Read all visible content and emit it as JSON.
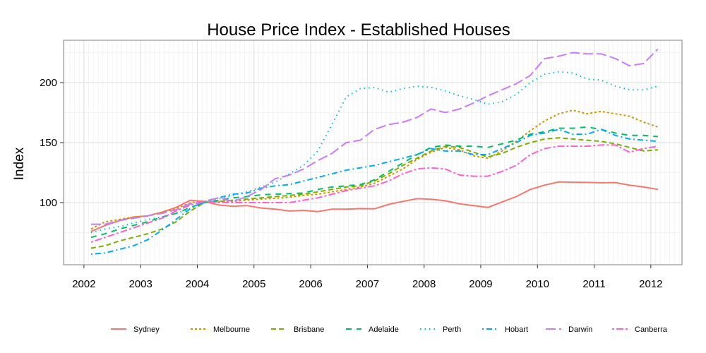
{
  "chart_data": {
    "type": "line",
    "title": "House Price Index - Established Houses",
    "xlabel": "",
    "ylabel": "Index",
    "xlim": [
      2001.64,
      2012.55
    ],
    "ylim": [
      48.2,
      235.3
    ],
    "x_ticks": [
      2002,
      2003,
      2004,
      2005,
      2006,
      2007,
      2008,
      2009,
      2010,
      2011,
      2012
    ],
    "y_ticks": [
      100,
      150,
      200
    ],
    "grid": true,
    "legend_position": "bottom",
    "x": [
      2002.125,
      2002.375,
      2002.625,
      2002.875,
      2003.125,
      2003.375,
      2003.625,
      2003.875,
      2004.125,
      2004.375,
      2004.625,
      2004.875,
      2005.125,
      2005.375,
      2005.625,
      2005.875,
      2006.125,
      2006.375,
      2006.625,
      2006.875,
      2007.125,
      2007.375,
      2007.625,
      2007.875,
      2008.125,
      2008.375,
      2008.625,
      2008.875,
      2009.125,
      2009.375,
      2009.625,
      2009.875,
      2010.125,
      2010.375,
      2010.625,
      2010.875,
      2011.125,
      2011.375,
      2011.625,
      2011.875,
      2012.125
    ],
    "series": [
      {
        "name": "Sydney",
        "color": "#F8766D",
        "dash": "solid",
        "values": [
          76,
          81,
          85,
          88,
          89,
          92,
          96,
          102,
          101,
          98,
          97,
          97.5,
          95.5,
          94.5,
          93,
          93.5,
          92.5,
          94.5,
          94.5,
          95,
          94.8,
          98.5,
          101,
          103.3,
          102.8,
          101.5,
          99,
          97.5,
          96,
          100.5,
          105,
          111,
          114.5,
          117.3,
          117,
          116.8,
          116.5,
          116.7,
          114.5,
          113,
          111
        ]
      },
      {
        "name": "Melbourne",
        "color": "#CD9600",
        "dash": "dotted",
        "values": [
          78,
          84,
          86,
          88,
          89,
          92,
          95,
          100,
          101,
          101,
          101,
          102,
          103,
          103.5,
          104.5,
          106,
          107,
          109,
          111,
          113,
          116,
          122,
          128,
          136,
          142,
          146,
          144,
          139,
          137,
          143,
          151,
          160,
          168,
          174,
          177,
          174,
          176,
          174,
          172,
          167,
          163
        ]
      },
      {
        "name": "Brisbane",
        "color": "#7CAE00",
        "dash": "dashed",
        "values": [
          62,
          64,
          68,
          71,
          74,
          78,
          84,
          93,
          100,
          101,
          102,
          103,
          104,
          105,
          106,
          107,
          109,
          111,
          113,
          114,
          118,
          124,
          131,
          137,
          143,
          147,
          146,
          142,
          138,
          141,
          146,
          150,
          153,
          154,
          153,
          152,
          151,
          149,
          146,
          143,
          144
        ]
      },
      {
        "name": "Adelaide",
        "color": "#00BE67",
        "dash": "dashed",
        "values": [
          71,
          74,
          78,
          81,
          84,
          88,
          91,
          96,
          100,
          102,
          104,
          105,
          106.5,
          107,
          107.5,
          108,
          111,
          113,
          114,
          115,
          119,
          126,
          133,
          140,
          146,
          148,
          147,
          147,
          146,
          149,
          152,
          157,
          159,
          162,
          162,
          163,
          161,
          158,
          156,
          156,
          155
        ]
      },
      {
        "name": "Perth",
        "color": "#00BFC4",
        "dash": "dotted",
        "values": [
          75,
          78,
          80,
          83,
          86,
          88,
          91,
          95,
          100,
          103,
          106,
          109,
          113,
          117,
          124,
          131,
          143,
          165,
          188,
          195,
          196,
          192,
          195,
          197,
          196,
          193,
          189,
          186,
          182,
          184,
          190,
          200,
          207,
          209,
          208,
          203,
          202,
          197,
          194,
          194,
          197
        ]
      },
      {
        "name": "Hobart",
        "color": "#00A9FF",
        "dash": "dotdash",
        "values": [
          57,
          58,
          61,
          64,
          69,
          77,
          86,
          95,
          101,
          104,
          107,
          108,
          112,
          114,
          115,
          118,
          121,
          124,
          127,
          129,
          131,
          134,
          137,
          140,
          145,
          143,
          143,
          140,
          140,
          145,
          150,
          156,
          158,
          161,
          157,
          157,
          161,
          156,
          153,
          152,
          151
        ]
      },
      {
        "name": "Darwin",
        "color": "#C77CFF",
        "dash": "longdash",
        "values": [
          82,
          82,
          85,
          87,
          89,
          91,
          94,
          99,
          101,
          104,
          101,
          105,
          111,
          120,
          123,
          128,
          135,
          141,
          150,
          152,
          161,
          165,
          167,
          171,
          178,
          175,
          178,
          183,
          189,
          194,
          199,
          206,
          220,
          222,
          225,
          224,
          224,
          220,
          214,
          216,
          228
        ]
      },
      {
        "name": "Canberra",
        "color": "#FF61CC",
        "dash": "twodash",
        "values": [
          67,
          71,
          75,
          79,
          83,
          87,
          93,
          98,
          101,
          100,
          100,
          100,
          100,
          100,
          100,
          102,
          104,
          107,
          110,
          112,
          114,
          118,
          124,
          128,
          129,
          128,
          123,
          122,
          122,
          126,
          131,
          140,
          145,
          147,
          147,
          147,
          148,
          148,
          142,
          145,
          147
        ]
      }
    ]
  }
}
